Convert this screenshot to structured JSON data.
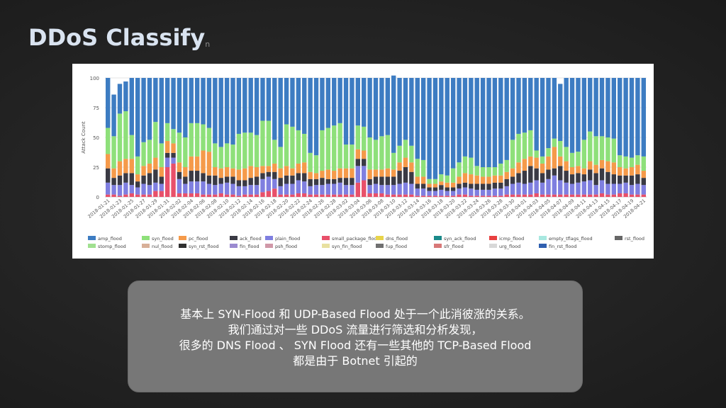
{
  "slide": {
    "title": "DDoS Classify",
    "title_tail": "n",
    "caption_lines": [
      "基本上 SYN-Flood 和 UDP-Based Flood 处于一个此消彼涨的关系。",
      "我们通过对一些 DDoS 流量进行筛选和分析发现，",
      "很多的 DNS Flood 、 SYN Flood 还有一些其他的 TCP-Based Flood",
      "都是由于 Botnet 引起的"
    ]
  },
  "chart_data": {
    "type": "bar",
    "stacked": true,
    "ylabel": "Attack Count",
    "ylim": [
      0,
      100
    ],
    "yticks": [
      "0",
      "25",
      "50",
      "75",
      "100"
    ],
    "grid": true,
    "legend_position": "bottom",
    "categories": [
      "2018-01-21",
      "2018-01-22",
      "2018-01-23",
      "2018-01-24",
      "2018-01-25",
      "2018-01-26",
      "2018-01-27",
      "2018-01-28",
      "2018-01-29",
      "2018-01-30",
      "2018-01-31",
      "2018-02-01",
      "2018-02-02",
      "2018-02-03",
      "2018-02-04",
      "2018-02-05",
      "2018-02-06",
      "2018-02-07",
      "2018-02-08",
      "2018-02-09",
      "2018-02-10",
      "2018-02-11",
      "2018-02-12",
      "2018-02-13",
      "2018-02-14",
      "2018-02-15",
      "2018-02-16",
      "2018-02-17",
      "2018-02-18",
      "2018-02-19",
      "2018-02-20",
      "2018-02-21",
      "2018-02-22",
      "2018-02-23",
      "2018-02-24",
      "2018-02-25",
      "2018-02-26",
      "2018-02-27",
      "2018-02-28",
      "2018-03-01",
      "2018-03-02",
      "2018-03-03",
      "2018-03-04",
      "2018-03-05",
      "2018-03-06",
      "2018-03-07",
      "2018-03-08",
      "2018-03-09",
      "2018-03-10",
      "2018-03-11",
      "2018-03-12",
      "2018-03-13",
      "2018-03-14",
      "2018-03-15",
      "2018-03-16",
      "2018-03-17",
      "2018-03-18",
      "2018-03-19",
      "2018-03-20",
      "2018-03-21",
      "2018-03-22",
      "2018-03-23",
      "2018-03-24",
      "2018-03-25",
      "2018-03-26",
      "2018-03-27",
      "2018-03-28",
      "2018-03-29",
      "2018-03-30",
      "2018-03-31",
      "2018-04-01",
      "2018-04-02",
      "2018-04-03",
      "2018-04-04",
      "2018-04-05",
      "2018-04-06",
      "2018-04-07",
      "2018-04-08",
      "2018-04-09",
      "2018-04-10",
      "2018-04-11",
      "2018-04-12",
      "2018-04-13",
      "2018-04-14",
      "2018-04-15",
      "2018-04-16",
      "2018-04-17",
      "2018-04-18",
      "2018-04-19",
      "2018-04-20",
      "2018-04-21"
    ],
    "tick_labels": [
      "2018-01-21",
      "2018-01-23",
      "2018-01-25",
      "2018-01-27",
      "2018-01-29",
      "2018-01-31",
      "2018-02-02",
      "2018-02-04",
      "2018-02-06",
      "2018-02-08",
      "2018-02-10",
      "2018-02-12",
      "2018-02-14",
      "2018-02-16",
      "2018-02-18",
      "2018-02-20",
      "2018-02-22",
      "2018-02-24",
      "2018-02-26",
      "2018-02-28",
      "2018-03-02",
      "2018-03-04",
      "2018-03-06",
      "2018-03-08",
      "2018-03-10",
      "2018-03-12",
      "2018-03-14",
      "2018-03-16",
      "2018-03-18",
      "2018-03-20",
      "2018-03-22",
      "2018-03-24",
      "2018-03-26",
      "2018-03-28",
      "2018-03-30",
      "2018-04-01",
      "2018-04-03",
      "2018-04-05",
      "2018-04-07",
      "2018-04-09",
      "2018-04-11",
      "2018-04-13",
      "2018-04-15",
      "2018-04-17",
      "2018-04-19",
      "2018-04-21"
    ],
    "series": [
      {
        "name": "small_package_flood",
        "color": "#e8506a",
        "values": [
          2,
          2,
          1,
          2,
          3,
          2,
          2,
          2,
          5,
          5,
          25,
          28,
          3,
          3,
          3,
          3,
          2,
          2,
          2,
          3,
          2,
          2,
          1,
          2,
          2,
          2,
          4,
          5,
          7,
          2,
          2,
          2,
          3,
          3,
          2,
          2,
          2,
          2,
          2,
          2,
          2,
          2,
          12,
          14,
          3,
          3,
          3,
          2,
          2,
          2,
          2,
          2,
          1,
          1,
          1,
          1,
          1,
          1,
          1,
          2,
          2,
          1,
          1,
          1,
          1,
          1,
          1,
          2,
          2,
          2,
          2,
          2,
          3,
          2,
          2,
          2,
          2,
          2,
          2,
          2,
          2,
          2,
          2,
          3,
          2,
          2,
          3,
          3,
          2,
          2,
          2
        ]
      },
      {
        "name": "plain_flood",
        "color": "#7f7fe0",
        "values": [
          10,
          8,
          9,
          10,
          7,
          6,
          9,
          8,
          7,
          6,
          8,
          5,
          12,
          8,
          10,
          10,
          11,
          9,
          8,
          8,
          10,
          9,
          8,
          7,
          8,
          8,
          11,
          12,
          8,
          7,
          9,
          9,
          11,
          10,
          7,
          8,
          8,
          9,
          9,
          10,
          8,
          8,
          14,
          12,
          7,
          8,
          7,
          8,
          8,
          9,
          10,
          9,
          6,
          6,
          4,
          4,
          5,
          4,
          4,
          5,
          6,
          6,
          5,
          5,
          5,
          6,
          6,
          7,
          9,
          10,
          9,
          10,
          11,
          10,
          13,
          16,
          12,
          10,
          9,
          10,
          11,
          12,
          8,
          11,
          9,
          9,
          8,
          9,
          8,
          9,
          8
        ]
      },
      {
        "name": "ack_flood",
        "color": "#3a3a44",
        "values": [
          12,
          6,
          8,
          8,
          10,
          5,
          7,
          10,
          11,
          6,
          4,
          4,
          6,
          6,
          9,
          9,
          7,
          7,
          8,
          5,
          5,
          6,
          5,
          5,
          6,
          7,
          5,
          4,
          6,
          7,
          7,
          7,
          6,
          7,
          6,
          5,
          6,
          4,
          4,
          4,
          6,
          6,
          6,
          6,
          5,
          6,
          7,
          7,
          7,
          11,
          13,
          10,
          4,
          4,
          3,
          3,
          4,
          3,
          3,
          4,
          4,
          4,
          5,
          5,
          5,
          5,
          5,
          6,
          6,
          8,
          11,
          14,
          10,
          8,
          8,
          6,
          12,
          10,
          8,
          8,
          6,
          9,
          10,
          10,
          10,
          8,
          7,
          6,
          8,
          8,
          6
        ]
      },
      {
        "name": "pc_flood",
        "color": "#f59a4a",
        "values": [
          12,
          8,
          12,
          12,
          12,
          6,
          8,
          8,
          10,
          8,
          10,
          8,
          8,
          8,
          12,
          12,
          19,
          20,
          7,
          8,
          8,
          7,
          9,
          10,
          10,
          8,
          6,
          5,
          7,
          8,
          8,
          6,
          8,
          9,
          6,
          5,
          6,
          8,
          7,
          8,
          8,
          8,
          8,
          7,
          8,
          6,
          6,
          7,
          6,
          7,
          8,
          8,
          6,
          6,
          3,
          3,
          3,
          4,
          4,
          6,
          8,
          8,
          7,
          6,
          6,
          6,
          6,
          6,
          7,
          9,
          10,
          8,
          9,
          8,
          11,
          18,
          8,
          8,
          6,
          6,
          5,
          7,
          7,
          7,
          9,
          10,
          7,
          6,
          7,
          8,
          6
        ]
      },
      {
        "name": "syn_flood",
        "color": "#8ee07a",
        "values": [
          22,
          27,
          40,
          40,
          20,
          15,
          20,
          20,
          30,
          20,
          15,
          12,
          25,
          25,
          28,
          28,
          22,
          20,
          20,
          18,
          20,
          20,
          30,
          30,
          28,
          27,
          38,
          38,
          20,
          18,
          35,
          35,
          28,
          24,
          16,
          15,
          34,
          35,
          38,
          38,
          20,
          20,
          20,
          20,
          27,
          25,
          28,
          28,
          14,
          14,
          15,
          14,
          15,
          14,
          4,
          4,
          6,
          6,
          12,
          12,
          14,
          14,
          8,
          8,
          8,
          7,
          10,
          10,
          24,
          24,
          22,
          22,
          6,
          6,
          7,
          7,
          13,
          12,
          12,
          12,
          24,
          25,
          24,
          20,
          20,
          20,
          10,
          10,
          8,
          8,
          12
        ]
      },
      {
        "name": "amp_flood",
        "color": "#3d7cc2",
        "values": [
          42,
          35,
          25,
          25,
          48,
          66,
          54,
          52,
          37,
          55,
          38,
          43,
          46,
          50,
          38,
          38,
          39,
          42,
          55,
          58,
          55,
          56,
          47,
          46,
          46,
          48,
          36,
          36,
          52,
          58,
          39,
          41,
          44,
          47,
          63,
          65,
          44,
          42,
          40,
          38,
          56,
          56,
          40,
          41,
          50,
          52,
          49,
          48,
          65,
          57,
          52,
          57,
          68,
          69,
          85,
          85,
          81,
          82,
          76,
          71,
          66,
          67,
          74,
          75,
          75,
          75,
          72,
          69,
          52,
          47,
          46,
          44,
          61,
          66,
          59,
          51,
          48,
          58,
          63,
          62,
          52,
          45,
          49,
          49,
          50,
          51,
          65,
          66,
          67,
          65,
          66
        ]
      }
    ],
    "legend": [
      {
        "name": "amp_flood",
        "color": "#3d7cc2"
      },
      {
        "name": "syn_flood",
        "color": "#8ee07a"
      },
      {
        "name": "pc_flood",
        "color": "#f59a4a"
      },
      {
        "name": "ack_flood",
        "color": "#3a3a44"
      },
      {
        "name": "plain_flood",
        "color": "#7f7fe0"
      },
      {
        "name": "small_package_flood",
        "color": "#e8506a"
      },
      {
        "name": "dns_flood",
        "color": "#e8d44a"
      },
      {
        "name": "syn_ack_flood",
        "color": "#1a8a8a"
      },
      {
        "name": "icmp_flood",
        "color": "#e84040"
      },
      {
        "name": "empty_tflags_flood",
        "color": "#a8e8e0"
      },
      {
        "name": "rst_flood",
        "color": "#666666"
      },
      {
        "name": "stomp_flood",
        "color": "#a0e090"
      },
      {
        "name": "nul_flood",
        "color": "#d8b098"
      },
      {
        "name": "syn_rst_flood",
        "color": "#303030"
      },
      {
        "name": "fin_flood",
        "color": "#9a8ad0"
      },
      {
        "name": "psh_flood",
        "color": "#d098a8"
      },
      {
        "name": "syn_fin_flood",
        "color": "#e8e0a0"
      },
      {
        "name": "fup_flood",
        "color": "#707070"
      },
      {
        "name": "sfr_flood",
        "color": "#d87878"
      },
      {
        "name": "urg_flood",
        "color": "#d8d8d8"
      },
      {
        "name": "fin_rst_flood",
        "color": "#3060b0"
      }
    ]
  }
}
